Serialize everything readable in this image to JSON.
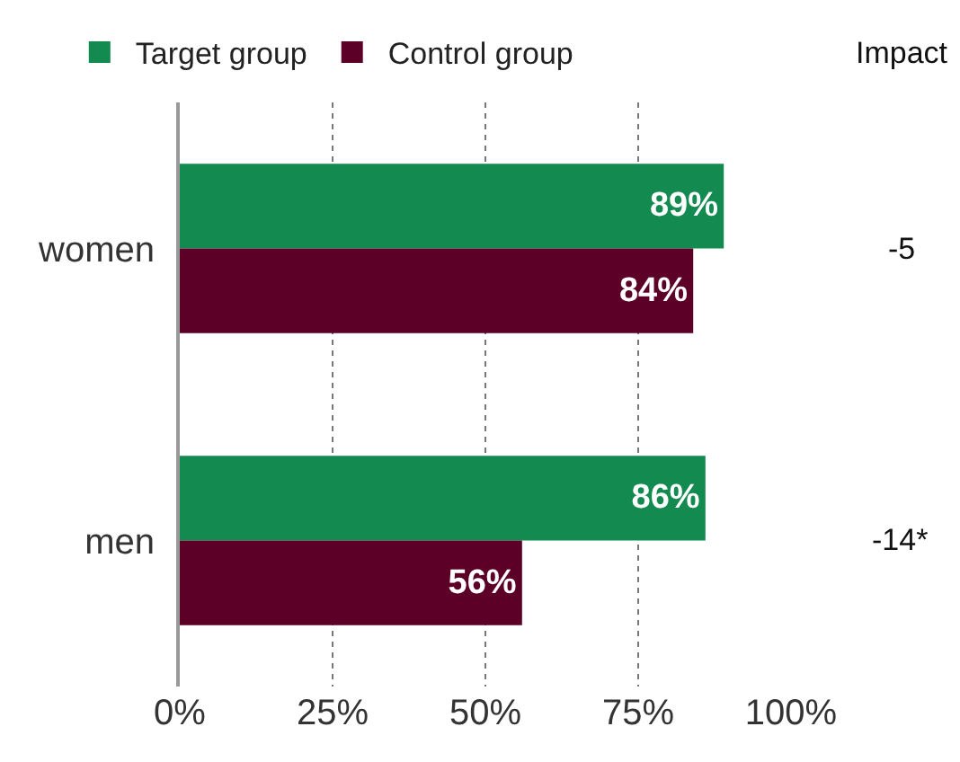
{
  "chart_data": {
    "type": "bar",
    "orientation": "horizontal",
    "categories": [
      "women",
      "men"
    ],
    "series": [
      {
        "name": "Target group",
        "color": "#138a50",
        "values": [
          89,
          86
        ],
        "value_labels": [
          "89%",
          "86%"
        ]
      },
      {
        "name": "Control group",
        "color": "#5c0028",
        "values": [
          84,
          56
        ],
        "value_labels": [
          "84%",
          "56%"
        ]
      }
    ],
    "xlim": [
      0,
      100
    ],
    "xticks": [
      {
        "value": 0,
        "label": "0%"
      },
      {
        "value": 25,
        "label": "25%"
      },
      {
        "value": 50,
        "label": "50%"
      },
      {
        "value": 75,
        "label": "75%"
      },
      {
        "value": 100,
        "label": "100%"
      }
    ],
    "grid": "x",
    "legend": "top left",
    "annotations": [
      "Impact",
      "-5",
      "-14*"
    ]
  }
}
